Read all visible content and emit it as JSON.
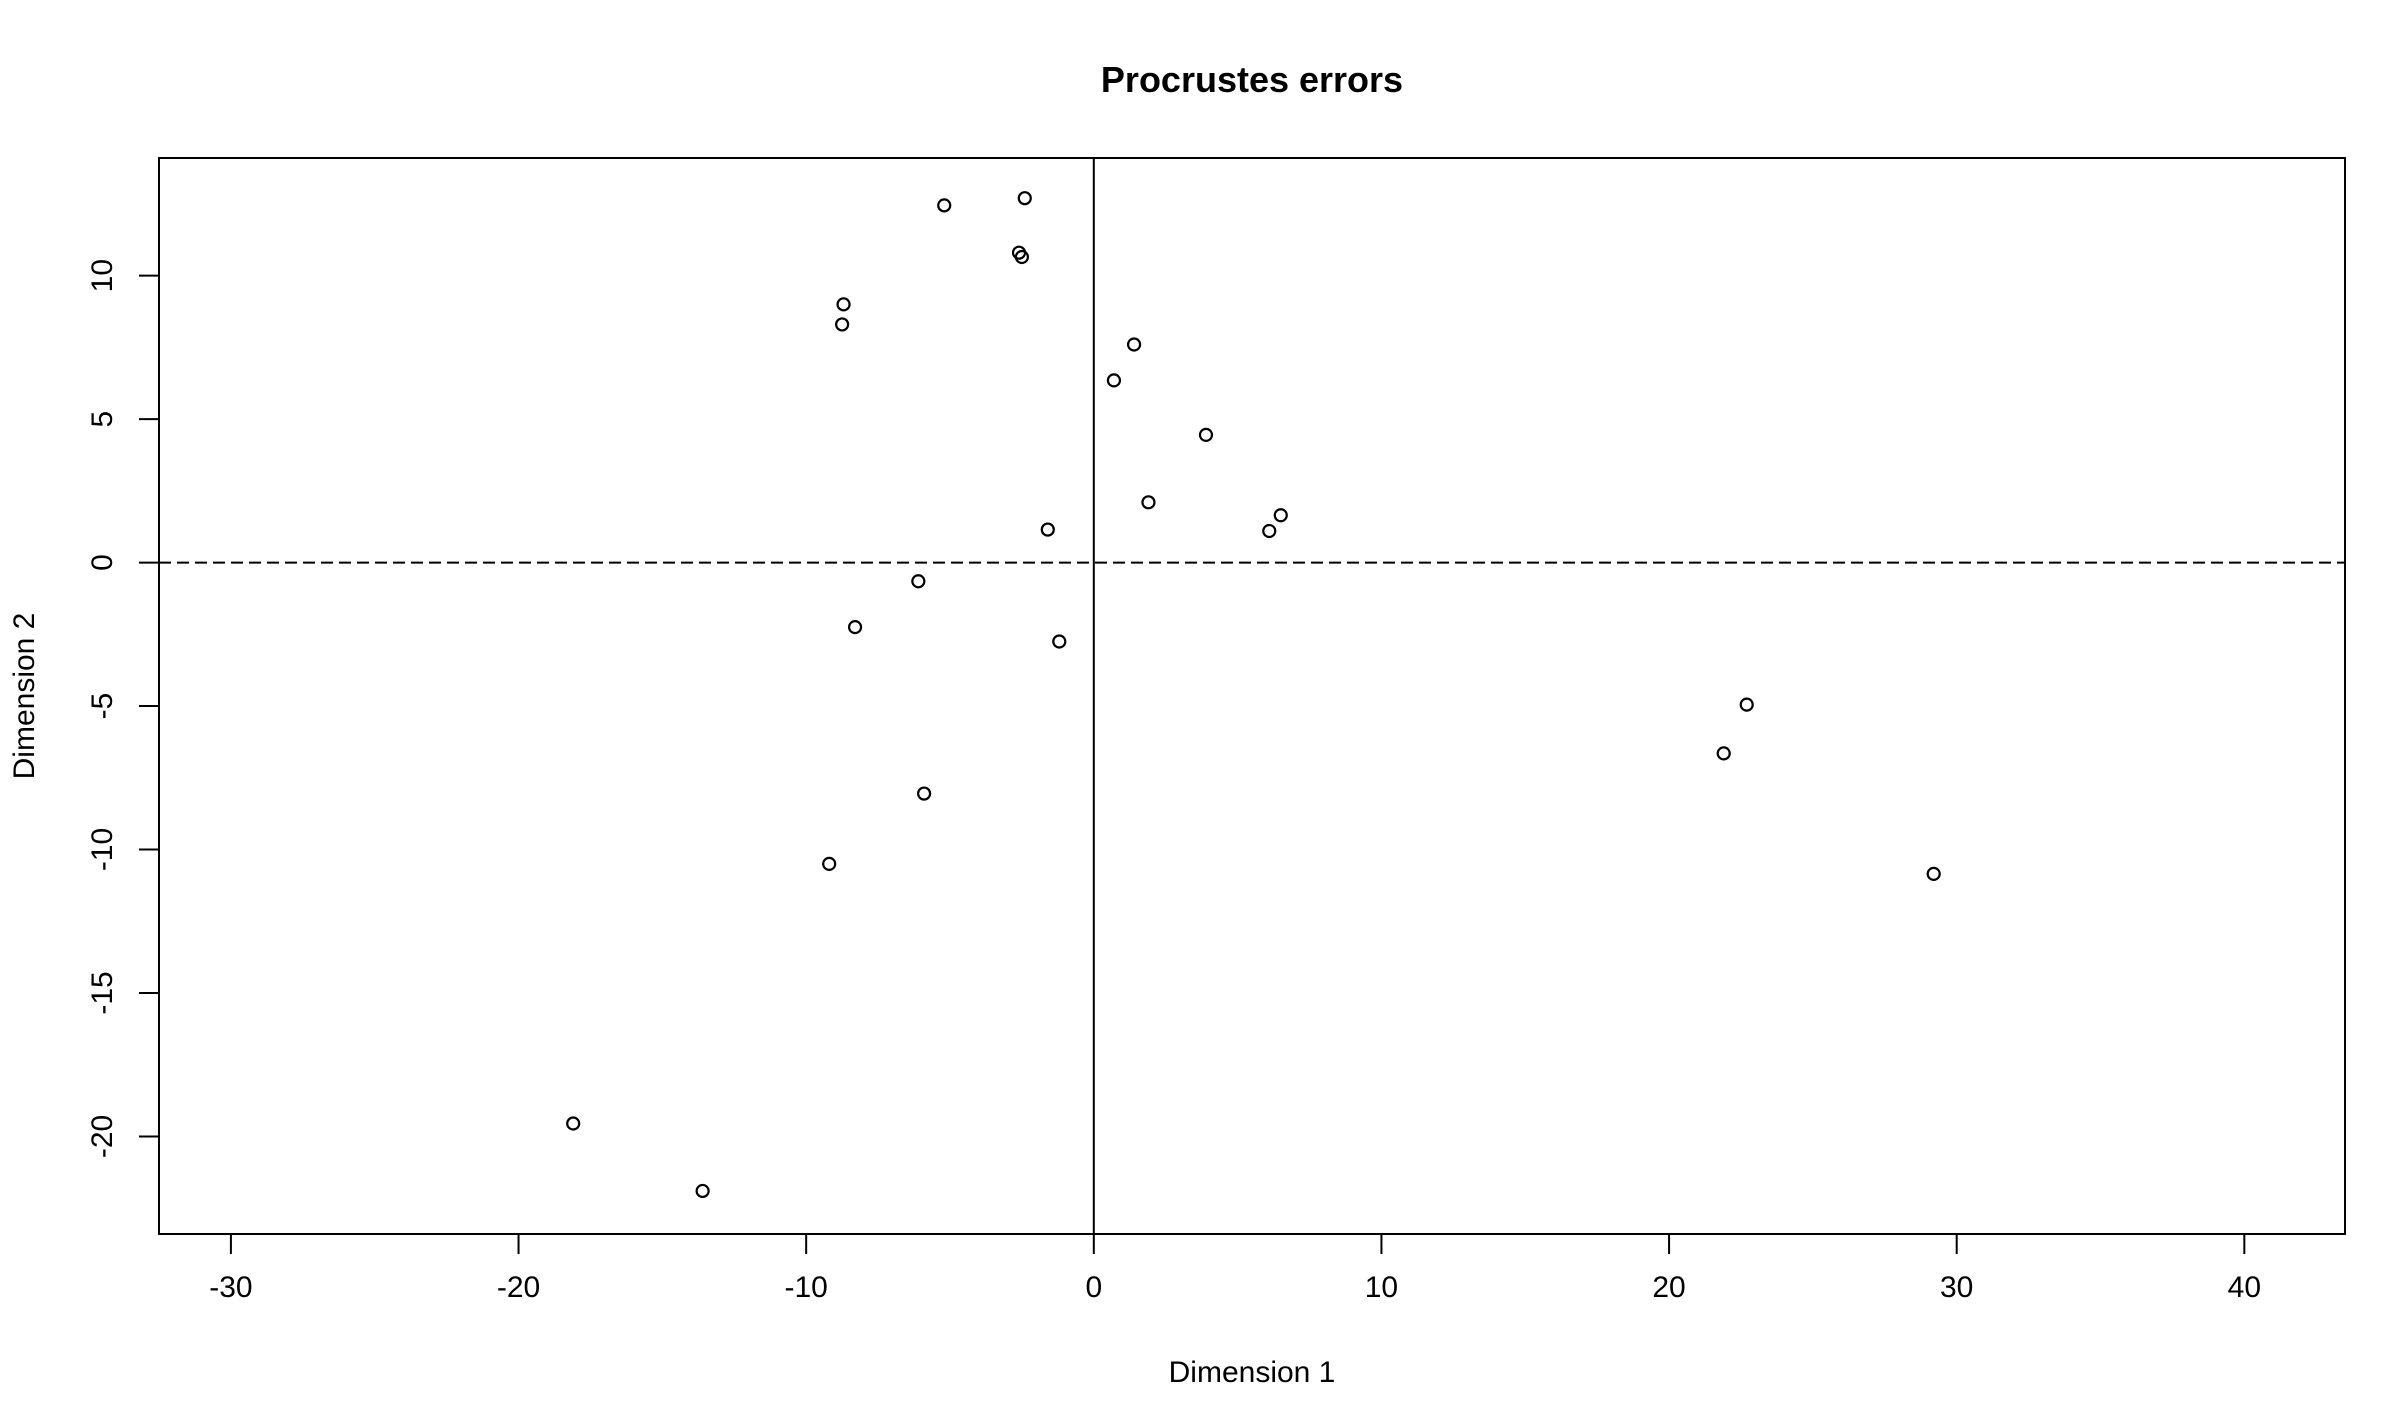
{
  "chart_data": {
    "type": "scatter",
    "title": "Procrustes errors",
    "xlabel": "Dimension 1",
    "ylabel": "Dimension 2",
    "xlim": [
      -32.5,
      43.5
    ],
    "ylim": [
      -23.4,
      14.1
    ],
    "xticks": [
      -30,
      -20,
      -10,
      0,
      10,
      20,
      30,
      40
    ],
    "yticks": [
      -20,
      -15,
      -10,
      -5,
      0,
      5,
      10
    ],
    "reference_lines": {
      "horizontal_y": 0,
      "vertical_x": 0
    },
    "grid": false,
    "legend": "none",
    "points": [
      {
        "x": -5.2,
        "y": 12.45
      },
      {
        "x": -2.4,
        "y": 12.7
      },
      {
        "x": -2.6,
        "y": 10.8
      },
      {
        "x": -2.5,
        "y": 10.65
      },
      {
        "x": -8.7,
        "y": 9.0
      },
      {
        "x": -8.75,
        "y": 8.3
      },
      {
        "x": 1.4,
        "y": 7.6
      },
      {
        "x": 0.7,
        "y": 6.35
      },
      {
        "x": 3.9,
        "y": 4.45
      },
      {
        "x": 1.9,
        "y": 2.1
      },
      {
        "x": 6.5,
        "y": 1.65
      },
      {
        "x": 6.1,
        "y": 1.1
      },
      {
        "x": -1.6,
        "y": 1.15
      },
      {
        "x": -6.1,
        "y": -0.65
      },
      {
        "x": -8.3,
        "y": -2.25
      },
      {
        "x": -1.2,
        "y": -2.75
      },
      {
        "x": -5.9,
        "y": -8.05
      },
      {
        "x": -9.2,
        "y": -10.5
      },
      {
        "x": -18.1,
        "y": -19.55
      },
      {
        "x": -13.6,
        "y": -21.9
      },
      {
        "x": 22.7,
        "y": -4.95
      },
      {
        "x": 21.9,
        "y": -6.65
      },
      {
        "x": 29.2,
        "y": -10.85
      }
    ]
  }
}
